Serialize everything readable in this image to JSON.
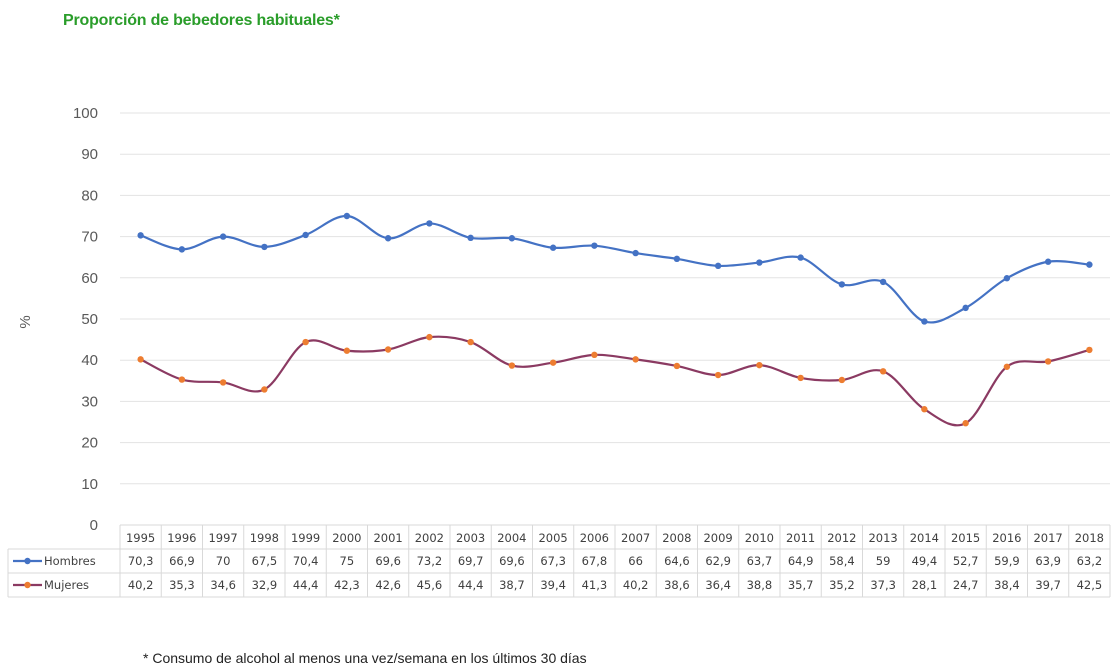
{
  "title": "Proporción de bebedores habituales*",
  "footnote": "* Consumo de alcohol al menos una vez/semana en los últimos 30 días",
  "chart_data": {
    "type": "line",
    "title": "Proporción de bebedores habituales*",
    "xlabel": "",
    "ylabel": "%",
    "ylim": [
      0,
      100
    ],
    "yticks": [
      "0",
      "10",
      "20",
      "30",
      "40",
      "50",
      "60",
      "70",
      "80",
      "90",
      "100"
    ],
    "grid": true,
    "legend": "data-table",
    "categories": [
      "1995",
      "1996",
      "1997",
      "1998",
      "1999",
      "2000",
      "2001",
      "2002",
      "2003",
      "2004",
      "2005",
      "2006",
      "2007",
      "2008",
      "2009",
      "2010",
      "2011",
      "2012",
      "2013",
      "2014",
      "2015",
      "2016",
      "2017",
      "2018"
    ],
    "series": [
      {
        "name": "Hombres",
        "color": "#4472c4",
        "values": [
          70.3,
          66.9,
          70,
          67.5,
          70.4,
          75,
          69.6,
          73.2,
          69.7,
          69.6,
          67.3,
          67.8,
          66,
          64.6,
          62.9,
          63.7,
          64.9,
          58.4,
          59,
          49.4,
          52.7,
          59.9,
          63.9,
          63.2
        ],
        "labels": [
          "70,3",
          "66,9",
          "70",
          "67,5",
          "70,4",
          "75",
          "69,6",
          "73,2",
          "69,7",
          "69,6",
          "67,3",
          "67,8",
          "66",
          "64,6",
          "62,9",
          "63,7",
          "64,9",
          "58,4",
          "59",
          "49,4",
          "52,7",
          "59,9",
          "63,9",
          "63,2"
        ]
      },
      {
        "name": "Mujeres",
        "color": "#ed7d31",
        "line_color": "#8b3a62",
        "values": [
          40.2,
          35.3,
          34.6,
          32.9,
          44.4,
          42.3,
          42.6,
          45.6,
          44.4,
          38.7,
          39.4,
          41.3,
          40.2,
          38.6,
          36.4,
          38.8,
          35.7,
          35.2,
          37.3,
          28.1,
          24.7,
          38.4,
          39.7,
          42.5
        ],
        "labels": [
          "40,2",
          "35,3",
          "34,6",
          "32,9",
          "44,4",
          "42,3",
          "42,6",
          "45,6",
          "44,4",
          "38,7",
          "39,4",
          "41,3",
          "40,2",
          "38,6",
          "36,4",
          "38,8",
          "35,7",
          "35,2",
          "37,3",
          "28,1",
          "24,7",
          "38,4",
          "39,7",
          "42,5"
        ]
      }
    ]
  }
}
